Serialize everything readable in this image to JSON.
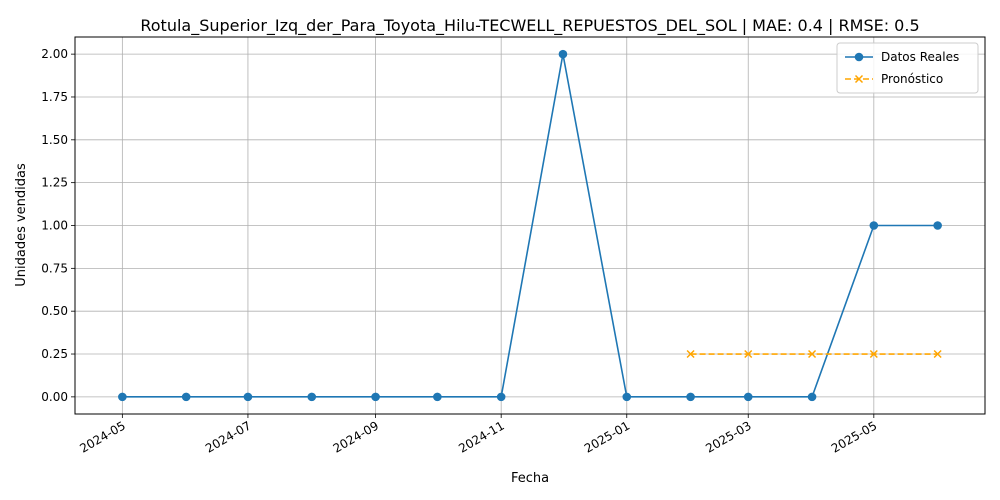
{
  "chart_data": {
    "type": "line",
    "title": "Rotula_Superior_Izq_der_Para_Toyota_Hilu-TECWELL_REPUESTOS_DEL_SOL | MAE: 0.4 | RMSE: 0.5",
    "xlabel": "Fecha",
    "ylabel": "Unidades vendidas",
    "ylim": [
      -0.1,
      2.1
    ],
    "xlim": [
      "2024-04-08",
      "2025-06-24"
    ],
    "grid": true,
    "legend_position": "top-right",
    "x_ticks": [
      "2024-05",
      "2024-07",
      "2024-09",
      "2024-11",
      "2025-01",
      "2025-03",
      "2025-05"
    ],
    "y_ticks": [
      "0.00",
      "0.25",
      "0.50",
      "0.75",
      "1.00",
      "1.25",
      "1.50",
      "1.75",
      "2.00"
    ],
    "series": [
      {
        "name": "Datos Reales",
        "color": "#1f77b4",
        "style": "solid",
        "marker": "circle",
        "x": [
          "2024-05-01",
          "2024-06-01",
          "2024-07-01",
          "2024-08-01",
          "2024-09-01",
          "2024-10-01",
          "2024-11-01",
          "2024-12-01",
          "2025-01-01",
          "2025-02-01",
          "2025-03-01",
          "2025-04-01",
          "2025-05-01",
          "2025-06-01"
        ],
        "values": [
          0,
          0,
          0,
          0,
          0,
          0,
          0,
          2,
          0,
          0,
          0,
          0,
          1,
          1
        ]
      },
      {
        "name": "Pronóstico",
        "color": "#ffa500",
        "style": "dashed",
        "marker": "x",
        "x": [
          "2025-02-01",
          "2025-03-01",
          "2025-04-01",
          "2025-05-01",
          "2025-06-01"
        ],
        "values": [
          0.25,
          0.25,
          0.25,
          0.25,
          0.25
        ]
      }
    ]
  }
}
